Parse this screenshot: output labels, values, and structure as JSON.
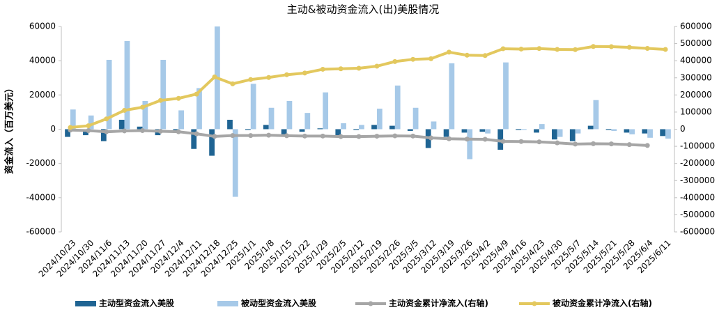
{
  "chart_data": {
    "type": "bar",
    "title": "主动&被动资金流入(出)美股情况",
    "y_label": "资金流入（百万美元）",
    "categories": [
      "2024/10/23",
      "2024/10/30",
      "2024/11/6",
      "2024/11/13",
      "2024/11/20",
      "2024/11/27",
      "2024/12/4",
      "2024/12/11",
      "2024/12/18",
      "2024/12/25",
      "2025/1/1",
      "2025/1/8",
      "2025/1/15",
      "2025/1/22",
      "2025/1/29",
      "2025/2/5",
      "2025/2/12",
      "2025/2/19",
      "2025/2/26",
      "2025/3/5",
      "2025/3/12",
      "2025/3/19",
      "2025/3/26",
      "2025/4/2",
      "2025/4/9",
      "2025/4/16",
      "2025/4/23",
      "2025/4/30",
      "2025/5/7",
      "2025/5/14",
      "2025/5/21",
      "2025/5/28",
      "2025/6/4",
      "2025/6/11"
    ],
    "series": [
      {
        "name": "主动型资金流入美股",
        "type": "bar",
        "color": "#1f6493",
        "values": [
          -4500,
          -3500,
          -7000,
          5500,
          1500,
          -3500,
          -1000,
          -11500,
          -15500,
          5500,
          -500,
          2500,
          -3000,
          -1500,
          500,
          -3500,
          -500,
          2500,
          2000,
          -1000,
          -11000,
          -4500,
          -2000,
          -1500,
          -12000,
          -500,
          -2000,
          -6000,
          -7000,
          2000,
          -500,
          -2000,
          -2500,
          -4000
        ]
      },
      {
        "name": "被动型资金流入美股",
        "type": "bar",
        "color": "#a6c9e8",
        "values": [
          11500,
          8000,
          40500,
          51500,
          16500,
          40500,
          11000,
          24000,
          60000,
          -39500,
          26500,
          12500,
          16500,
          9500,
          21500,
          3500,
          2500,
          12000,
          25500,
          12500,
          4500,
          38500,
          -17500,
          -2500,
          39000,
          -500,
          3000,
          -4500,
          -2500,
          17000,
          -1000,
          -3000,
          -5000,
          -5500
        ]
      },
      {
        "name": "主动资金累计净流入(右轴)",
        "type": "line",
        "axis": "y2",
        "color": "#a6a6a6",
        "values": [
          -5000,
          -8000,
          -15000,
          -10000,
          -8000,
          -12000,
          -15000,
          -27000,
          -42000,
          -37000,
          -37000,
          -35000,
          -38000,
          -40000,
          -40000,
          -43000,
          -43000,
          -41000,
          -39000,
          -40000,
          -51000,
          -56000,
          -58000,
          -59000,
          -71000,
          -72000,
          -74000,
          -80000,
          -87000,
          -85000,
          -86000,
          -90000,
          -95000,
          null
        ]
      },
      {
        "name": "被动资金累计净流入(右轴)",
        "type": "line",
        "axis": "y2",
        "color": "#e3c85e",
        "values": [
          10000,
          20000,
          60000,
          110000,
          128000,
          168000,
          180000,
          205000,
          305000,
          265000,
          290000,
          302000,
          318000,
          328000,
          350000,
          353000,
          356000,
          368000,
          395000,
          408000,
          412000,
          450000,
          432000,
          430000,
          470000,
          468000,
          471000,
          466000,
          465000,
          483000,
          482000,
          478000,
          472000,
          466000
        ]
      }
    ],
    "ylim": [
      -60000,
      60000
    ],
    "yticks": [
      -60000,
      -40000,
      -20000,
      0,
      20000,
      40000,
      60000
    ],
    "y2lim": [
      -600000,
      600000
    ],
    "y2ticks": [
      -600000,
      -500000,
      -400000,
      -300000,
      -200000,
      -100000,
      0,
      100000,
      200000,
      300000,
      400000,
      500000,
      600000
    ],
    "grid": false,
    "legend": "bottom"
  }
}
